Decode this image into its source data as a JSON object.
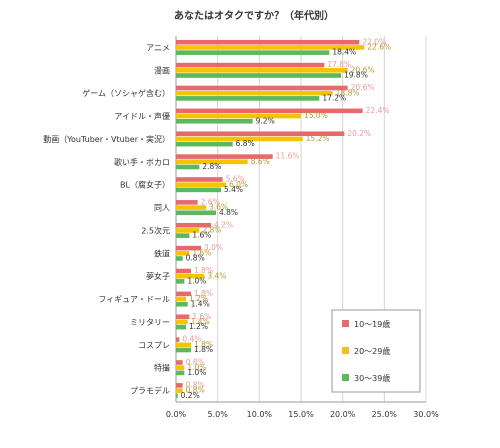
{
  "chart_data": {
    "type": "bar",
    "orientation": "horizontal",
    "title": "あなたはオタクですか？（年代別）",
    "categories": [
      "アニメ",
      "漫画",
      "ゲーム（ソシャゲ含む）",
      "アイドル・声優",
      "動画（YouTuber・Vtuber・実況）",
      "歌い手・ボカロ",
      "BL（腐女子）",
      "同人",
      "2.5次元",
      "鉄道",
      "夢女子",
      "フィギュア・ドール",
      "ミリタリー",
      "コスプレ",
      "特撮",
      "プラモデル"
    ],
    "series": [
      {
        "name": "10〜19歳",
        "color": "#e8696b",
        "label_color": "#e99a9a",
        "values": [
          22.0,
          17.8,
          20.6,
          22.4,
          20.2,
          11.6,
          5.6,
          2.6,
          4.2,
          3.0,
          1.8,
          1.8,
          1.6,
          0.4,
          0.8,
          0.8
        ],
        "labels": [
          "22.0%",
          "17.8%",
          "20.6%",
          "22.4%",
          "20.2%",
          "11.6%",
          "5.6%",
          "2.6%",
          "4.2%",
          "3.0%",
          "1.8%",
          "1.8%",
          "1.6%",
          "0.4%",
          "0.8%",
          "0.8%"
        ]
      },
      {
        "name": "20〜29歳",
        "color": "#f5c400",
        "label_color": "#b59a30",
        "values": [
          22.6,
          20.6,
          18.8,
          15.0,
          15.2,
          8.6,
          6.0,
          3.6,
          2.8,
          1.6,
          3.4,
          1.2,
          1.4,
          1.8,
          1.0,
          0.8
        ],
        "labels": [
          "22.6%",
          "20.6%",
          "18.8%",
          "15.0%",
          "15.2%",
          "8.6%",
          "6.0%",
          "3.6%",
          "2.8%",
          "1.6%",
          "3.4%",
          "1.2%",
          "1.4%",
          "1.8%",
          "1.0%",
          "0.8%"
        ]
      },
      {
        "name": "30〜39歳",
        "color": "#5cb85c",
        "label_color": "#333333",
        "values": [
          18.4,
          19.8,
          17.2,
          9.2,
          6.8,
          2.8,
          5.4,
          4.8,
          1.6,
          0.8,
          1.0,
          1.4,
          1.2,
          1.8,
          1.0,
          0.2
        ],
        "labels": [
          "18.4%",
          "19.8%",
          "17.2%",
          "9.2%",
          "6.8%",
          "2.8%",
          "5.4%",
          "4.8%",
          "1.6%",
          "0.8%",
          "1.0%",
          "1.4%",
          "1.2%",
          "1.8%",
          "1.0%",
          "0.2%"
        ]
      }
    ],
    "xlim": [
      0,
      30
    ],
    "xticks": [
      "0.0%",
      "5.0%",
      "10.0%",
      "15.0%",
      "20.0%",
      "25.0%",
      "30.0%"
    ],
    "grid": true,
    "legend": "bottom-right"
  }
}
